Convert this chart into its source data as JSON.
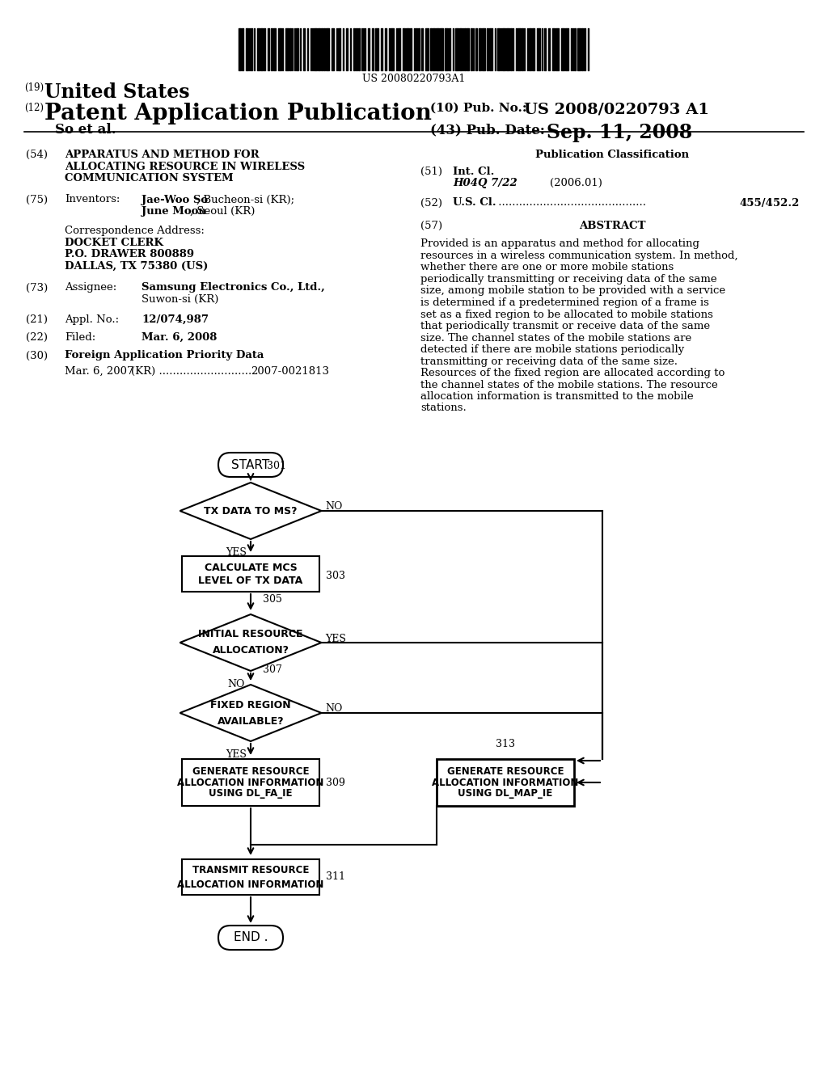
{
  "bg_color": "#ffffff",
  "barcode_text": "US 20080220793A1",
  "header": {
    "line1_num": "(19)",
    "line1_text": "United States",
    "line2_num": "(12)",
    "line2_text": "Patent Application Publication",
    "line3_left": "So et al.",
    "pub_no_label": "(10) Pub. No.:",
    "pub_no_val": "US 2008/0220793 A1",
    "pub_date_label": "(43) Pub. Date:",
    "pub_date_val": "Sep. 11, 2008"
  },
  "right_col": {
    "pub_class_title": "Publication Classification",
    "int_cl_label": "Int. Cl.",
    "int_cl_val": "H04Q 7/22",
    "int_cl_year": "(2006.01)",
    "us_cl_label": "U.S. Cl.",
    "us_cl_dots": "...........................................",
    "us_cl_val": "455/452.2",
    "abstract_title": "ABSTRACT",
    "abstract_text": "Provided is an apparatus and method for allocating resources in a wireless communication system. In method, whether there are one or more mobile stations periodically transmitting or receiving data of the same size, among mobile station to be provided with a service is determined if a predetermined region of a frame is set as a fixed region to be allocated to mobile stations that periodically transmit or receive data of the same size. The channel states of the mobile stations are detected if there are mobile stations periodically transmitting or receiving data of the same size. Resources of the fixed region are allocated according to the channel states of the mobile stations. The resource allocation information is transmitted to the mobile stations."
  },
  "flowchart": {
    "start_label": "START",
    "end_label": "END .",
    "node301_label": "301",
    "node301_text": "TX DATA TO MS?",
    "node303_text_1": "CALCULATE MCS",
    "node303_text_2": "LEVEL OF TX DATA",
    "node303_label": "303",
    "node305_label": "305",
    "node305_text_1": "INITIAL RESOURCE",
    "node305_text_2": "ALLOCATION?",
    "node307_label": "307",
    "node307_text_1": "FIXED REGION",
    "node307_text_2": "AVAILABLE?",
    "node309_text_1": "GENERATE RESOURCE",
    "node309_text_2": "ALLOCATION INFORMATION",
    "node309_text_3": "USING DL_FA_IE",
    "node309_label": "309",
    "node313_text_1": "GENERATE RESOURCE",
    "node313_text_2": "ALLOCATION INFORMATION",
    "node313_text_3": "USING DL_MAP_IE",
    "node313_label": "313",
    "node311_text_1": "TRANSMIT RESOURCE",
    "node311_text_2": "ALLOCATION INFORMATION",
    "node311_label": "311"
  }
}
